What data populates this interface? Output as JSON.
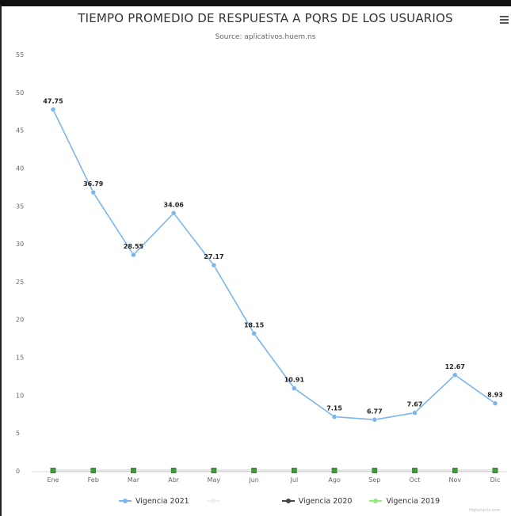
{
  "chart": {
    "title": "TIEMPO PROMEDIO DE RESPUESTA A PQRS DE LOS USUARIOS",
    "subtitle": "Source: aplicativos.huem.ns",
    "credits": "Highcharts.com"
  },
  "chart_data": {
    "type": "line",
    "title": "TIEMPO PROMEDIO DE RESPUESTA A PQRS DE LOS USUARIOS",
    "subtitle": "Source: aplicativos.huem.ns",
    "xlabel": "",
    "ylabel": "",
    "categories": [
      "Ene",
      "Feb",
      "Mar",
      "Abr",
      "May",
      "Jun",
      "Jul",
      "Ago",
      "Sep",
      "Oct",
      "Nov",
      "Dic"
    ],
    "yticks": [
      0,
      5,
      10,
      15,
      20,
      25,
      30,
      35,
      40,
      45,
      50,
      55
    ],
    "ylim": [
      0,
      55
    ],
    "grid": false,
    "legend_position": "bottom-center",
    "series": [
      {
        "name": "Vigencia 2021",
        "color": "#7cb5ec",
        "values": [
          47.75,
          36.79,
          28.55,
          34.06,
          27.17,
          18.15,
          10.91,
          7.15,
          6.77,
          7.67,
          12.67,
          8.93
        ],
        "labels": [
          "47.75",
          "36.79",
          "28.55",
          "34.06",
          "27.17",
          "18.15",
          "10.91",
          "7.15",
          "6.77",
          "7.67",
          "12.67",
          "8.93"
        ],
        "show_labels": true
      },
      {
        "name": "",
        "color": "#e8e8e8",
        "values": [
          0,
          0,
          0,
          0,
          0,
          0,
          0,
          0,
          0,
          0,
          0,
          0
        ],
        "labels": [],
        "show_labels": false,
        "legend_faded": true
      },
      {
        "name": "Vigencia 2020",
        "color": "#434348",
        "values": [
          0,
          0,
          0,
          0,
          0,
          0,
          0,
          0,
          0,
          0,
          0,
          0
        ],
        "labels": [],
        "show_labels": false
      },
      {
        "name": "Vigencia 2019",
        "color": "#90ed7d",
        "values": [
          0,
          0,
          0,
          0,
          0,
          0,
          0,
          0,
          0,
          0,
          0,
          0
        ],
        "labels": [],
        "show_labels": false
      }
    ]
  },
  "icons": {
    "menu": "hamburger-menu-icon"
  }
}
